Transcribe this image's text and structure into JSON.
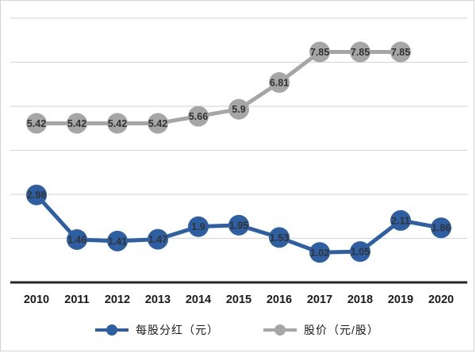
{
  "chart_data": {
    "type": "line",
    "x": [
      "2010",
      "2011",
      "2012",
      "2013",
      "2014",
      "2015",
      "2016",
      "2017",
      "2018",
      "2019",
      "2020"
    ],
    "series": [
      {
        "name": "每股分红（元）",
        "color": "#2e5fa3",
        "values": [
          2.98,
          1.46,
          1.41,
          1.47,
          1.9,
          1.95,
          1.53,
          1.02,
          1.05,
          2.11,
          1.86
        ]
      },
      {
        "name": "股价（元/股）",
        "color": "#a6a6a6",
        "values": [
          5.42,
          5.42,
          5.42,
          5.42,
          5.66,
          5.9,
          6.81,
          7.85,
          7.85,
          7.85,
          null
        ]
      }
    ],
    "title": "",
    "xlabel": "",
    "ylabel": "",
    "ylim": [
      0,
      9.5
    ],
    "y_gridlines": [
      1.5,
      3,
      4.5,
      6,
      7.5,
      9
    ],
    "grid": true,
    "legend_position": "bottom",
    "data_labels": true,
    "data_label_color": "#333333",
    "axis_line_color": "#262626",
    "gridline_color": "#d9d9d9"
  }
}
